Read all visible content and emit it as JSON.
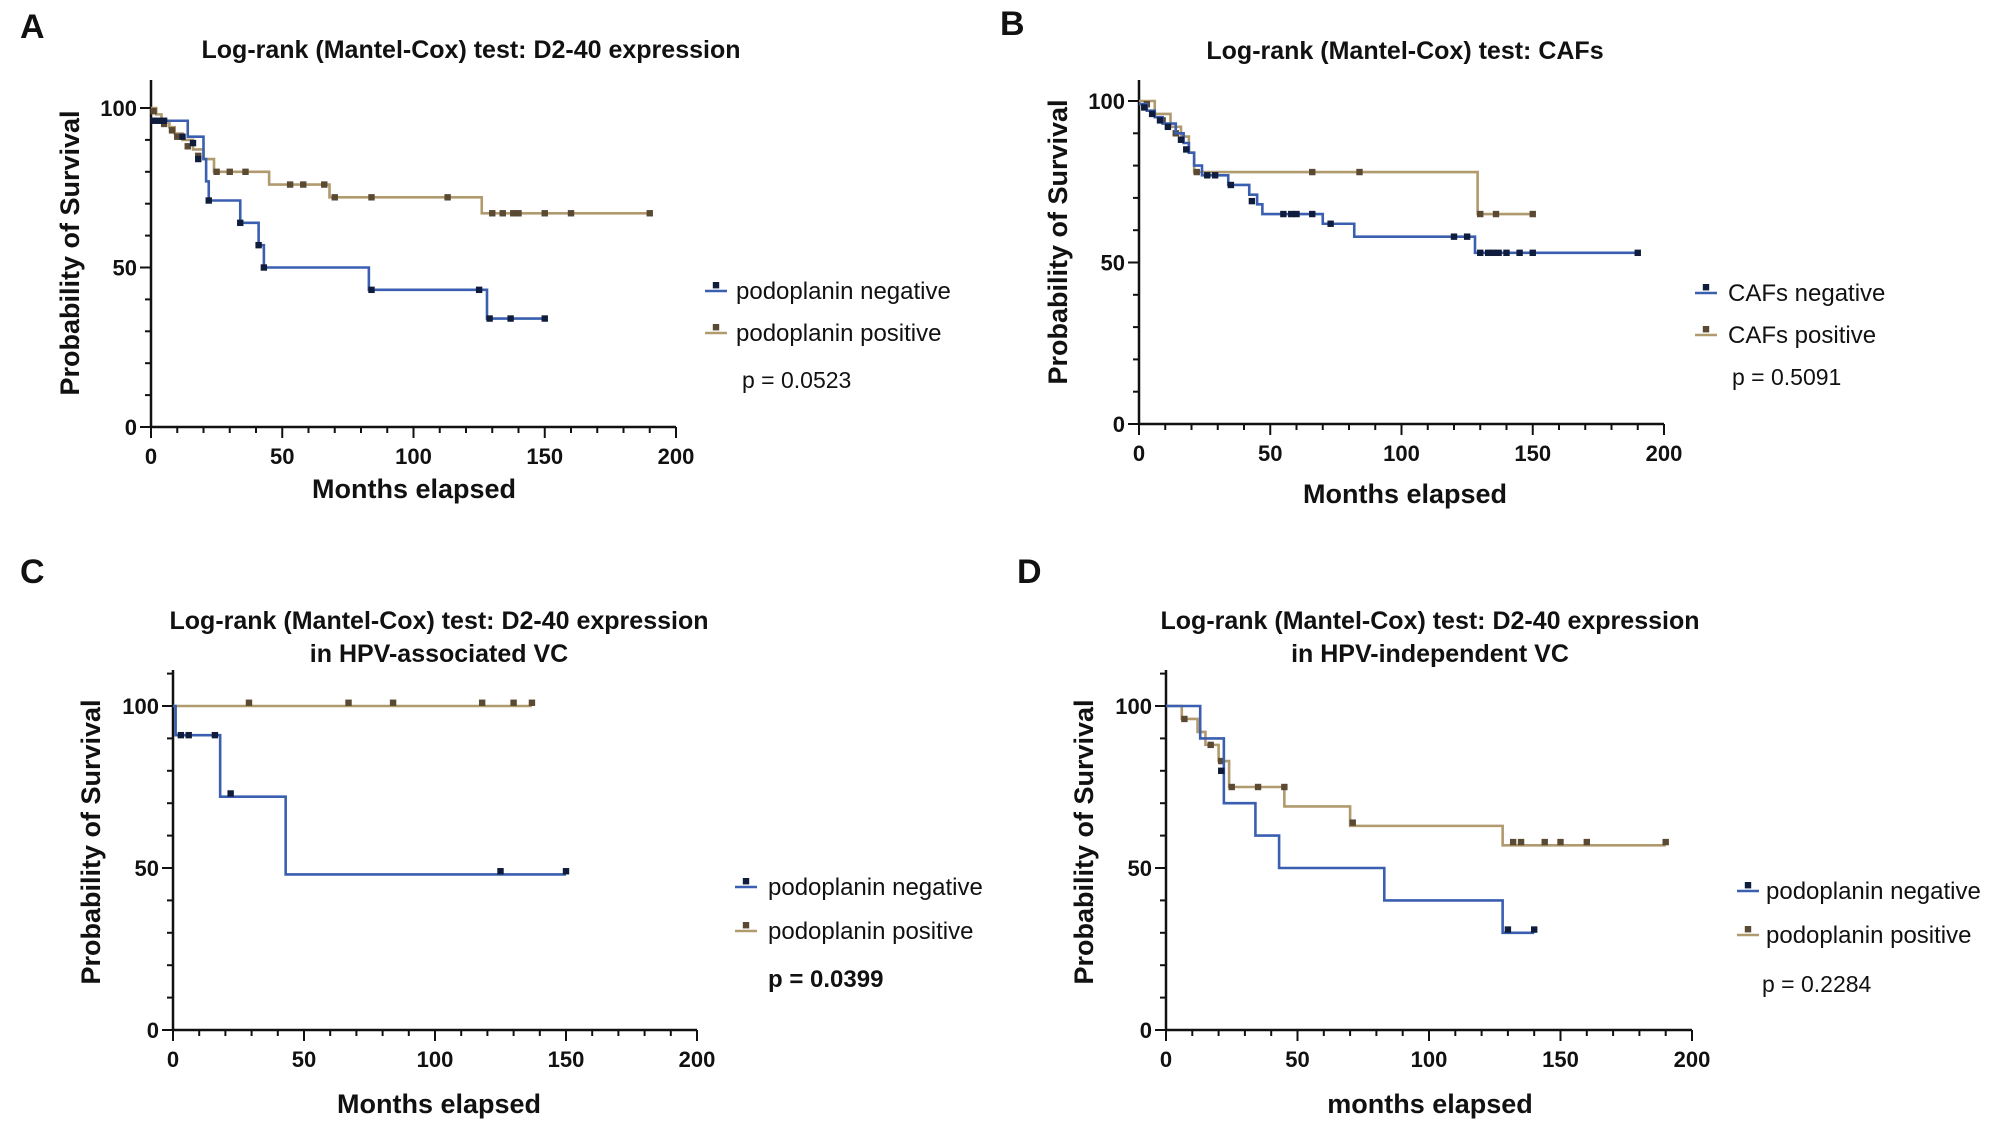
{
  "colors": {
    "negative": "#3a5fb0",
    "positive": "#b09a6e",
    "censor_negative": "#101c3c",
    "censor_positive": "#5a4a34",
    "axis": "#111111"
  },
  "chart_data": [
    {
      "type": "line",
      "panel": "A",
      "title": [
        "Log-rank (Mantel-Cox) test: D2-40 expression"
      ],
      "xlabel": "Months elapsed",
      "ylabel": "Probability of Survival",
      "xlim": [
        0,
        200
      ],
      "ylim": [
        0,
        110
      ],
      "xticks": [
        0,
        50,
        100,
        150,
        200
      ],
      "yticks": [
        0,
        50,
        100
      ],
      "xtick_labels": [
        "0",
        "50",
        "100",
        "150",
        "200"
      ],
      "ytick_labels": [
        "0",
        "50",
        "100"
      ],
      "p_value": "p = 0.0523",
      "p_bold": false,
      "series": [
        {
          "name": "podoplanin negative",
          "color_key": "negative",
          "steps": [
            [
              0,
              96
            ],
            [
              14,
              91
            ],
            [
              20,
              84
            ],
            [
              21,
              77
            ],
            [
              22,
              71
            ],
            [
              34,
              64
            ],
            [
              41,
              57
            ],
            [
              43,
              50
            ],
            [
              83,
              43
            ],
            [
              125,
              43
            ],
            [
              128,
              34
            ],
            [
              150,
              34
            ]
          ],
          "censors": [
            [
              1,
              96
            ],
            [
              3,
              96
            ],
            [
              5,
              96
            ],
            [
              12,
              91
            ],
            [
              16,
              89
            ],
            [
              18,
              84
            ],
            [
              22,
              71
            ],
            [
              34,
              64
            ],
            [
              41,
              57
            ],
            [
              43,
              50
            ],
            [
              84,
              43
            ],
            [
              125,
              43
            ],
            [
              129,
              34
            ],
            [
              137,
              34
            ],
            [
              150,
              34
            ]
          ]
        },
        {
          "name": "podoplanin positive",
          "color_key": "positive",
          "steps": [
            [
              0,
              100
            ],
            [
              2,
              98
            ],
            [
              4,
              96
            ],
            [
              7,
              94
            ],
            [
              9,
              92
            ],
            [
              12,
              90
            ],
            [
              16,
              87
            ],
            [
              20,
              84
            ],
            [
              24,
              80
            ],
            [
              45,
              76
            ],
            [
              68,
              72
            ],
            [
              126,
              67
            ],
            [
              190,
              67
            ]
          ],
          "censors": [
            [
              1,
              99
            ],
            [
              5,
              95
            ],
            [
              8,
              93
            ],
            [
              10,
              91
            ],
            [
              14,
              88
            ],
            [
              18,
              85
            ],
            [
              25,
              80
            ],
            [
              30,
              80
            ],
            [
              36,
              80
            ],
            [
              53,
              76
            ],
            [
              58,
              76
            ],
            [
              66,
              76
            ],
            [
              70,
              72
            ],
            [
              84,
              72
            ],
            [
              113,
              72
            ],
            [
              130,
              67
            ],
            [
              134,
              67
            ],
            [
              138,
              67
            ],
            [
              140,
              67
            ],
            [
              150,
              67
            ],
            [
              160,
              67
            ],
            [
              190,
              67
            ]
          ]
        }
      ]
    },
    {
      "type": "line",
      "panel": "B",
      "title": [
        "Log-rank (Mantel-Cox) test: CAFs"
      ],
      "xlabel": "Months elapsed",
      "ylabel": "Probability of Survival",
      "xlim": [
        0,
        200
      ],
      "ylim": [
        0,
        110
      ],
      "xticks": [
        0,
        50,
        100,
        150,
        200
      ],
      "yticks": [
        0,
        50,
        100
      ],
      "xtick_labels": [
        "0",
        "50",
        "100",
        "150",
        "200"
      ],
      "ytick_labels": [
        "0",
        "50",
        "100"
      ],
      "p_value": "p = 0.5091",
      "p_bold": false,
      "series": [
        {
          "name": "CAFs negative",
          "color_key": "negative",
          "steps": [
            [
              0,
              99
            ],
            [
              3,
              97
            ],
            [
              6,
              95
            ],
            [
              9,
              93
            ],
            [
              14,
              90
            ],
            [
              17,
              87
            ],
            [
              19,
              84
            ],
            [
              21,
              80
            ],
            [
              24,
              77
            ],
            [
              34,
              74
            ],
            [
              42,
              71
            ],
            [
              45,
              68
            ],
            [
              47,
              65
            ],
            [
              70,
              62
            ],
            [
              82,
              58
            ],
            [
              125,
              58
            ],
            [
              128,
              53
            ],
            [
              190,
              53
            ]
          ],
          "censors": [
            [
              2,
              98
            ],
            [
              5,
              96
            ],
            [
              8,
              94
            ],
            [
              11,
              92
            ],
            [
              16,
              88
            ],
            [
              18,
              85
            ],
            [
              26,
              77
            ],
            [
              29,
              77
            ],
            [
              35,
              74
            ],
            [
              43,
              69
            ],
            [
              55,
              65
            ],
            [
              58,
              65
            ],
            [
              60,
              65
            ],
            [
              66,
              65
            ],
            [
              73,
              62
            ],
            [
              120,
              58
            ],
            [
              125,
              58
            ],
            [
              130,
              53
            ],
            [
              133,
              53
            ],
            [
              135,
              53
            ],
            [
              137,
              53
            ],
            [
              140,
              53
            ],
            [
              145,
              53
            ],
            [
              150,
              53
            ],
            [
              190,
              53
            ]
          ]
        },
        {
          "name": "CAFs positive",
          "color_key": "positive",
          "steps": [
            [
              0,
              100
            ],
            [
              6,
              96
            ],
            [
              12,
              92
            ],
            [
              16,
              89
            ],
            [
              19,
              84
            ],
            [
              21,
              78
            ],
            [
              126,
              78
            ],
            [
              129,
              65
            ],
            [
              150,
              65
            ]
          ],
          "censors": [
            [
              3,
              99
            ],
            [
              9,
              94
            ],
            [
              14,
              90
            ],
            [
              22,
              78
            ],
            [
              66,
              78
            ],
            [
              84,
              78
            ],
            [
              130,
              65
            ],
            [
              136,
              65
            ],
            [
              150,
              65
            ]
          ]
        }
      ]
    },
    {
      "type": "line",
      "panel": "C",
      "title": [
        "Log-rank (Mantel-Cox) test: D2-40 expression",
        "in HPV-associated VC"
      ],
      "xlabel": "Months elapsed",
      "ylabel": "Probability of Survival",
      "xlim": [
        0,
        200
      ],
      "ylim": [
        0,
        110
      ],
      "xticks": [
        0,
        50,
        100,
        150,
        200
      ],
      "yticks": [
        0,
        50,
        100
      ],
      "xtick_labels": [
        "0",
        "50",
        "100",
        "150",
        "200"
      ],
      "ytick_labels": [
        "0",
        "50",
        "100"
      ],
      "p_value": "p = 0.0399",
      "p_bold": true,
      "series": [
        {
          "name": "podoplanin negative",
          "color_key": "negative",
          "steps": [
            [
              0,
              100
            ],
            [
              1,
              91
            ],
            [
              17,
              91
            ],
            [
              18,
              72
            ],
            [
              42,
              72
            ],
            [
              43,
              48
            ],
            [
              150,
              48
            ]
          ],
          "censors": [
            [
              3,
              91
            ],
            [
              6,
              91
            ],
            [
              16,
              91
            ],
            [
              22,
              73
            ],
            [
              125,
              49
            ],
            [
              150,
              49
            ]
          ]
        },
        {
          "name": "podoplanin positive",
          "color_key": "positive",
          "steps": [
            [
              0,
              100
            ],
            [
              137,
              100
            ]
          ],
          "censors": [
            [
              29,
              101
            ],
            [
              67,
              101
            ],
            [
              84,
              101
            ],
            [
              118,
              101
            ],
            [
              130,
              101
            ],
            [
              137,
              101
            ]
          ]
        }
      ]
    },
    {
      "type": "line",
      "panel": "D",
      "title": [
        "Log-rank (Mantel-Cox) test: D2-40 expression",
        "in HPV-independent VC"
      ],
      "xlabel": "months elapsed",
      "ylabel": "Probability of Survival",
      "xlim": [
        0,
        200
      ],
      "ylim": [
        0,
        110
      ],
      "xticks": [
        0,
        50,
        100,
        150,
        200
      ],
      "yticks": [
        0,
        50,
        100
      ],
      "xtick_labels": [
        "0",
        "50",
        "100",
        "150",
        "200"
      ],
      "ytick_labels": [
        "0",
        "50",
        "100"
      ],
      "p_value": "p = 0.2284",
      "p_bold": false,
      "series": [
        {
          "name": "podoplanin negative",
          "color_key": "negative",
          "steps": [
            [
              0,
              100
            ],
            [
              13,
              90
            ],
            [
              22,
              70
            ],
            [
              34,
              60
            ],
            [
              43,
              50
            ],
            [
              83,
              40
            ],
            [
              128,
              30
            ],
            [
              140,
              30
            ]
          ],
          "censors": [
            [
              21,
              80
            ],
            [
              130,
              31
            ],
            [
              140,
              31
            ]
          ]
        },
        {
          "name": "podoplanin positive",
          "color_key": "positive",
          "steps": [
            [
              0,
              100
            ],
            [
              6,
              96
            ],
            [
              12,
              92
            ],
            [
              15,
              88
            ],
            [
              20,
              83
            ],
            [
              24,
              75
            ],
            [
              45,
              69
            ],
            [
              70,
              63
            ],
            [
              128,
              57
            ],
            [
              190,
              57
            ]
          ],
          "censors": [
            [
              7,
              96
            ],
            [
              17,
              88
            ],
            [
              21,
              83
            ],
            [
              25,
              75
            ],
            [
              35,
              75
            ],
            [
              45,
              75
            ],
            [
              71,
              64
            ],
            [
              132,
              58
            ],
            [
              135,
              58
            ],
            [
              144,
              58
            ],
            [
              150,
              58
            ],
            [
              160,
              58
            ],
            [
              190,
              58
            ]
          ]
        }
      ]
    }
  ]
}
